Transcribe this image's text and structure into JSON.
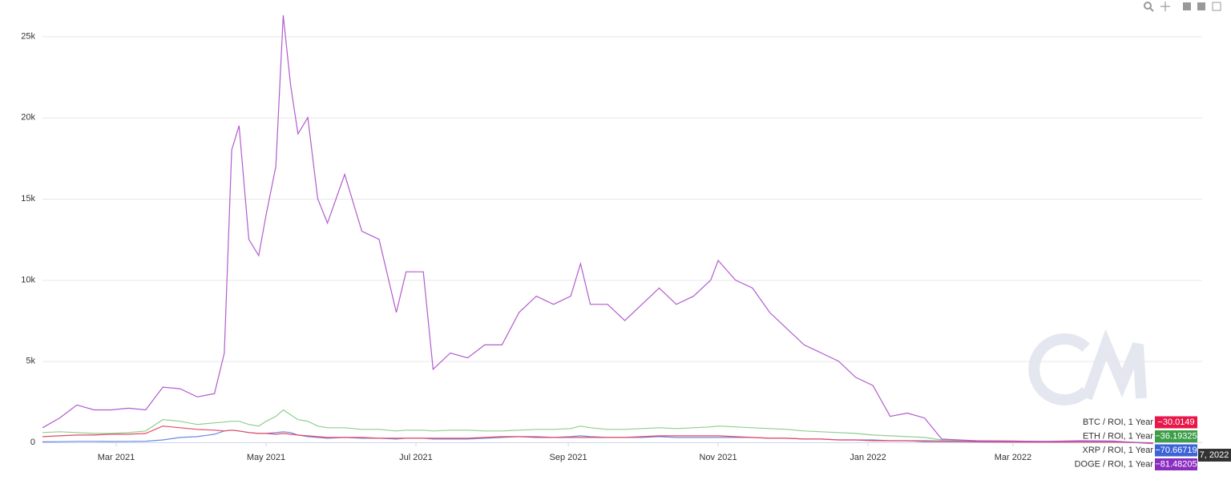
{
  "chart_data": {
    "type": "line",
    "x": [
      "2021-01-30",
      "2021-02-06",
      "2021-02-13",
      "2021-02-20",
      "2021-02-27",
      "2021-03-06",
      "2021-03-13",
      "2021-03-20",
      "2021-03-27",
      "2021-04-03",
      "2021-04-10",
      "2021-04-14",
      "2021-04-17",
      "2021-04-20",
      "2021-04-24",
      "2021-04-28",
      "2021-05-01",
      "2021-05-05",
      "2021-05-08",
      "2021-05-11",
      "2021-05-14",
      "2021-05-18",
      "2021-05-22",
      "2021-05-26",
      "2021-06-02",
      "2021-06-09",
      "2021-06-16",
      "2021-06-23",
      "2021-06-27",
      "2021-07-04",
      "2021-07-08",
      "2021-07-15",
      "2021-07-22",
      "2021-07-29",
      "2021-08-05",
      "2021-08-12",
      "2021-08-19",
      "2021-08-26",
      "2021-09-02",
      "2021-09-06",
      "2021-09-10",
      "2021-09-17",
      "2021-09-24",
      "2021-10-01",
      "2021-10-08",
      "2021-10-15",
      "2021-10-22",
      "2021-10-29",
      "2021-11-01",
      "2021-11-08",
      "2021-11-15",
      "2021-11-22",
      "2021-11-29",
      "2021-12-06",
      "2021-12-13",
      "2021-12-20",
      "2021-12-27",
      "2022-01-03",
      "2022-01-10",
      "2022-01-17",
      "2022-01-24",
      "2022-01-31",
      "2022-02-07",
      "2022-02-14",
      "2022-02-28",
      "2022-03-14",
      "2022-03-28",
      "2022-04-11",
      "2022-04-27"
    ],
    "xlim": [
      "2021-01-30",
      "2022-05-17"
    ],
    "xticks": [
      {
        "value": "2021-03-01",
        "label": "Mar 2021"
      },
      {
        "value": "2021-05-01",
        "label": "May 2021"
      },
      {
        "value": "2021-07-01",
        "label": "Jul 2021"
      },
      {
        "value": "2021-09-01",
        "label": "Sep 2021"
      },
      {
        "value": "2021-11-01",
        "label": "Nov 2021"
      },
      {
        "value": "2022-01-01",
        "label": "Jan 2022"
      },
      {
        "value": "2022-03-01",
        "label": "Mar 2022"
      }
    ],
    "ylim": [
      0,
      26500
    ],
    "yticks": [
      0,
      {
        "value": 5000,
        "label": "5k"
      },
      {
        "value": 10000,
        "label": "10k"
      },
      {
        "value": 15000,
        "label": "15k"
      },
      {
        "value": 20000,
        "label": "20k"
      },
      {
        "value": 25000,
        "label": "25k"
      }
    ],
    "grid": true,
    "crosshair_label": "7, 2022",
    "series": [
      {
        "name": "BTC / ROI, 1 Year",
        "color": "#e8174b",
        "line_color": "#e64a66",
        "last_value_label": "−30.0149",
        "values": [
          350,
          400,
          450,
          450,
          500,
          500,
          550,
          1000,
          900,
          800,
          750,
          700,
          750,
          700,
          600,
          550,
          550,
          500,
          550,
          500,
          450,
          400,
          350,
          300,
          300,
          300,
          250,
          250,
          250,
          250,
          250,
          250,
          250,
          300,
          350,
          350,
          300,
          300,
          300,
          300,
          300,
          300,
          300,
          350,
          400,
          400,
          400,
          400,
          400,
          350,
          300,
          250,
          250,
          200,
          200,
          150,
          150,
          100,
          100,
          100,
          50,
          50,
          40,
          30,
          20,
          10,
          20,
          10,
          -30.0149
        ]
      },
      {
        "name": "ETH / ROI, 1 Year",
        "color": "#3c9e47",
        "line_color": "#8fcf8f",
        "last_value_label": "−36.19325",
        "values": [
          600,
          650,
          600,
          550,
          550,
          600,
          700,
          1400,
          1300,
          1100,
          1200,
          1250,
          1300,
          1300,
          1100,
          1000,
          1300,
          1600,
          2000,
          1700,
          1400,
          1300,
          1000,
          900,
          900,
          800,
          800,
          700,
          750,
          750,
          700,
          750,
          750,
          700,
          700,
          750,
          800,
          800,
          850,
          1000,
          900,
          800,
          800,
          850,
          900,
          850,
          900,
          950,
          1000,
          950,
          900,
          850,
          800,
          700,
          650,
          600,
          550,
          450,
          400,
          350,
          300,
          150,
          120,
          100,
          80,
          50,
          60,
          50,
          -36.19325
        ]
      },
      {
        "name": "XRP / ROI, 1 Year",
        "color": "#3d64d6",
        "line_color": "#6a8be0",
        "last_value_label": "−70.66719",
        "values": [
          30,
          40,
          60,
          60,
          50,
          60,
          70,
          150,
          300,
          350,
          500,
          700,
          750,
          700,
          600,
          550,
          550,
          600,
          650,
          600,
          450,
          350,
          300,
          250,
          300,
          250,
          250,
          200,
          250,
          250,
          200,
          200,
          200,
          250,
          300,
          350,
          350,
          300,
          350,
          400,
          350,
          300,
          300,
          300,
          350,
          300,
          300,
          300,
          300,
          300,
          300,
          250,
          250,
          200,
          200,
          150,
          150,
          150,
          100,
          100,
          100,
          80,
          70,
          60,
          50,
          50,
          60,
          40,
          -70.66719
        ]
      },
      {
        "name": "DOGE / ROI, 1 Year",
        "color": "#8a2cc0",
        "line_color": "#b25ccc",
        "last_value_label": "−81.48205",
        "values": [
          900,
          1500,
          2300,
          2000,
          2000,
          2100,
          2000,
          3400,
          3300,
          2800,
          3000,
          5500,
          18000,
          19500,
          12500,
          11500,
          14000,
          17000,
          26300,
          22000,
          19000,
          20000,
          15000,
          13500,
          16500,
          13000,
          12500,
          8000,
          10500,
          10500,
          4500,
          5500,
          5200,
          6000,
          6000,
          8000,
          9000,
          8500,
          9000,
          11000,
          8500,
          8500,
          7500,
          8500,
          9500,
          8500,
          9000,
          10000,
          11200,
          10000,
          9500,
          8000,
          7000,
          6000,
          5500,
          5000,
          4000,
          3500,
          1600,
          1800,
          1500,
          200,
          150,
          100,
          80,
          60,
          100,
          80,
          -81.48205
        ]
      }
    ]
  }
}
